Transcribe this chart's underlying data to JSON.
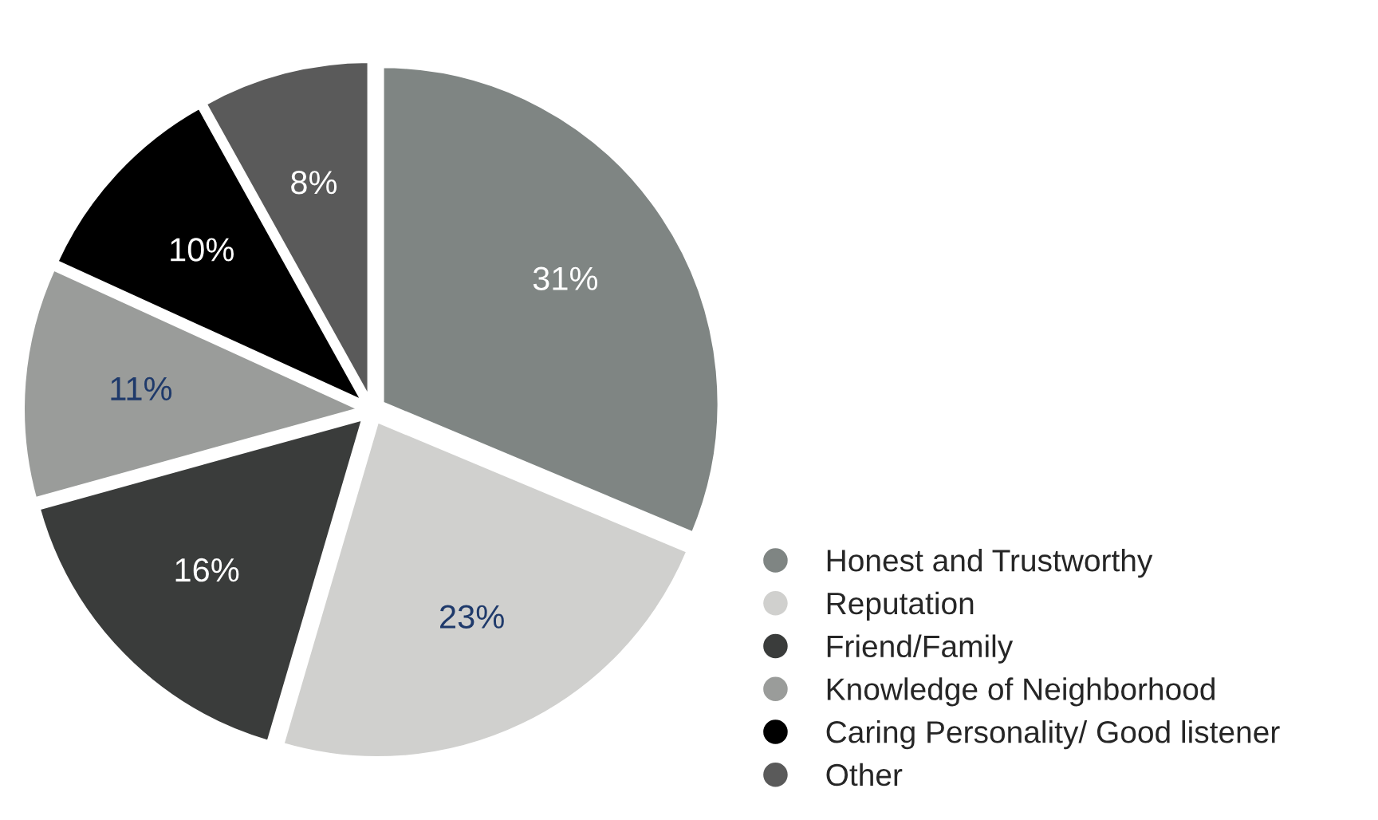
{
  "chart_data": {
    "type": "pie",
    "categories": [
      "Honest and Trustworthy",
      "Reputation",
      "Friend/Family",
      "Knowledge of Neighborhood",
      "Caring Personality/ Good listener",
      "Other"
    ],
    "values": [
      31,
      23,
      16,
      11,
      10,
      8
    ],
    "colors": [
      "#7f8583",
      "#d0d0ce",
      "#3a3c3b",
      "#9a9c9a",
      "#000000",
      "#5a5a5a"
    ],
    "value_labels": [
      "31%",
      "23%",
      "16%",
      "11%",
      "10%",
      "8%"
    ],
    "legend": "bottom right"
  }
}
